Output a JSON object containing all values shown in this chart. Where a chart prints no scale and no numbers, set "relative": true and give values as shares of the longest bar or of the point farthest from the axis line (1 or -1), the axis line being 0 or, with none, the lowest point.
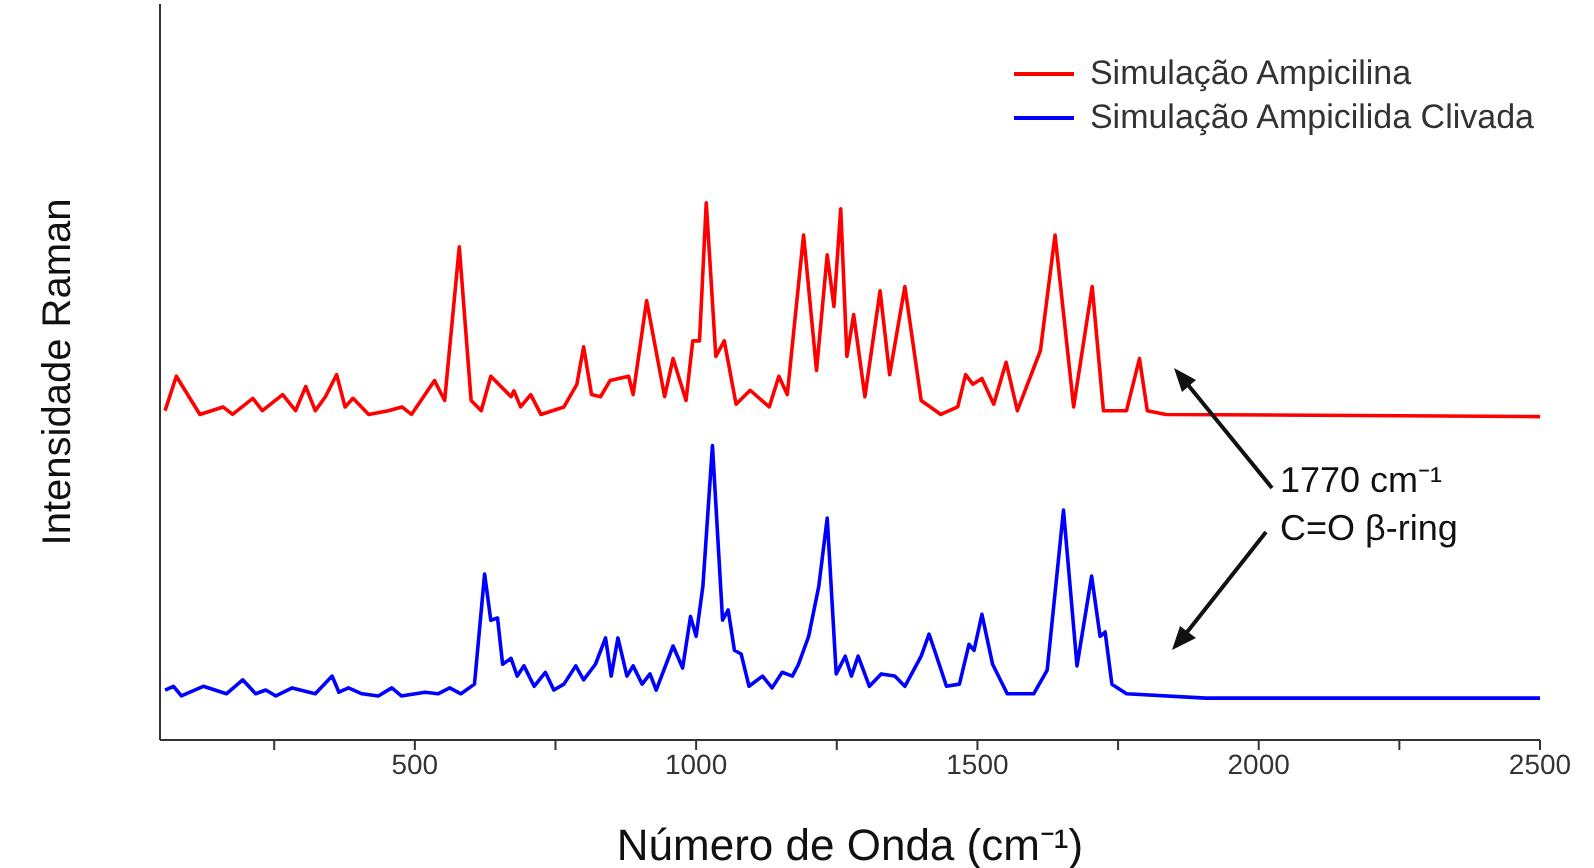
{
  "chart_data": {
    "type": "line",
    "relative": true,
    "xlabel": "Número de Onda (cm⁻¹)",
    "ylabel": "Intensidade Raman",
    "xlim": [
      47,
      2500
    ],
    "xticks": [
      {
        "value": 250,
        "label": null
      },
      500,
      {
        "value": 750,
        "label": null
      },
      1000,
      {
        "value": 1250,
        "label": null
      },
      1500,
      {
        "value": 1750,
        "label": null
      },
      2000,
      {
        "value": 2250,
        "label": null
      },
      2500
    ],
    "legend": "top right",
    "marker": "none",
    "grid": false,
    "annotations": [
      "1770 cm⁻¹",
      "C=O β-ring"
    ],
    "series": [
      {
        "name": "Simulação Ampicilina",
        "color": "#ff0000",
        "x": [
          56,
          76,
          118,
          159,
          176,
          212,
          229,
          265,
          288,
          306,
          323,
          341,
          361,
          376,
          390,
          418,
          453,
          477,
          494,
          535,
          553,
          579,
          600,
          618,
          635,
          671,
          676,
          688,
          706,
          724,
          765,
          788,
          800,
          814,
          830,
          847,
          880,
          888,
          912,
          944,
          959,
          982,
          994,
          1006,
          1018,
          1035,
          1050,
          1071,
          1096,
          1130,
          1147,
          1162,
          1191,
          1214,
          1233,
          1245,
          1257,
          1268,
          1280,
          1300,
          1327,
          1344,
          1371,
          1400,
          1435,
          1465,
          1479,
          1492,
          1508,
          1529,
          1551,
          1571,
          1612,
          1638,
          1671,
          1704,
          1724,
          1765,
          1788,
          1802,
          1835,
          2500
        ],
        "values": [
          0.613,
          0.677,
          0.606,
          0.62,
          0.606,
          0.636,
          0.613,
          0.643,
          0.613,
          0.658,
          0.613,
          0.639,
          0.68,
          0.62,
          0.636,
          0.606,
          0.613,
          0.62,
          0.606,
          0.669,
          0.632,
          0.918,
          0.632,
          0.613,
          0.677,
          0.639,
          0.65,
          0.62,
          0.643,
          0.606,
          0.62,
          0.662,
          0.732,
          0.643,
          0.639,
          0.669,
          0.677,
          0.643,
          0.818,
          0.639,
          0.71,
          0.632,
          0.743,
          0.743,
          1.0,
          0.714,
          0.743,
          0.625,
          0.651,
          0.62,
          0.677,
          0.643,
          0.94,
          0.688,
          0.903,
          0.807,
          0.989,
          0.714,
          0.792,
          0.639,
          0.836,
          0.68,
          0.844,
          0.632,
          0.606,
          0.62,
          0.68,
          0.662,
          0.673,
          0.625,
          0.703,
          0.613,
          0.725,
          0.94,
          0.62,
          0.844,
          0.613,
          0.613,
          0.71,
          0.613,
          0.606,
          0.602
        ]
      },
      {
        "name": "Simulação Ampicilida Clivada",
        "color": "#0000ff",
        "x": [
          56,
          71,
          85,
          124,
          165,
          194,
          217,
          235,
          253,
          282,
          323,
          353,
          365,
          382,
          406,
          435,
          459,
          476,
          518,
          541,
          562,
          582,
          606,
          624,
          635,
          647,
          656,
          671,
          682,
          694,
          712,
          732,
          747,
          765,
          786,
          800,
          821,
          839,
          849,
          861,
          877,
          888,
          904,
          918,
          929,
          959,
          976,
          990,
          1000,
          1012,
          1029,
          1047,
          1057,
          1068,
          1080,
          1094,
          1118,
          1135,
          1153,
          1171,
          1182,
          1200,
          1218,
          1233,
          1249,
          1265,
          1276,
          1288,
          1308,
          1329,
          1353,
          1371,
          1400,
          1414,
          1426,
          1445,
          1468,
          1485,
          1494,
          1508,
          1527,
          1553,
          1600,
          1624,
          1653,
          1677,
          1703,
          1718,
          1727,
          1739,
          1765,
          1906,
          2500
        ],
        "values": [
          0.093,
          0.1,
          0.082,
          0.1,
          0.086,
          0.112,
          0.086,
          0.093,
          0.082,
          0.097,
          0.086,
          0.119,
          0.089,
          0.097,
          0.086,
          0.082,
          0.097,
          0.082,
          0.089,
          0.086,
          0.097,
          0.086,
          0.104,
          0.309,
          0.223,
          0.227,
          0.141,
          0.152,
          0.119,
          0.138,
          0.1,
          0.126,
          0.093,
          0.104,
          0.138,
          0.112,
          0.141,
          0.19,
          0.119,
          0.19,
          0.119,
          0.138,
          0.104,
          0.123,
          0.093,
          0.175,
          0.134,
          0.23,
          0.193,
          0.286,
          0.548,
          0.223,
          0.242,
          0.167,
          0.16,
          0.1,
          0.119,
          0.097,
          0.126,
          0.119,
          0.141,
          0.193,
          0.286,
          0.413,
          0.123,
          0.156,
          0.119,
          0.156,
          0.1,
          0.123,
          0.119,
          0.1,
          0.156,
          0.197,
          0.16,
          0.1,
          0.104,
          0.178,
          0.167,
          0.234,
          0.141,
          0.086,
          0.086,
          0.13,
          0.428,
          0.138,
          0.305,
          0.193,
          0.201,
          0.104,
          0.086,
          0.078,
          0.078
        ]
      }
    ]
  }
}
